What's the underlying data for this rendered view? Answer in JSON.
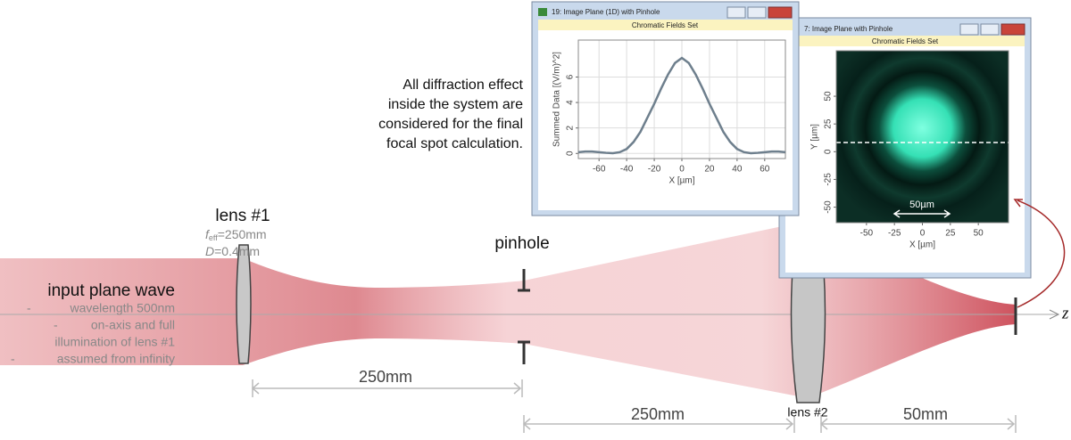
{
  "diagram": {
    "input_label": "input plane wave",
    "input_bullets": [
      "wavelength 500nm",
      "on-axis and full",
      "illumination of lens #1",
      "assumed from infinity"
    ],
    "bullet_marks": [
      "-",
      "-",
      "-"
    ],
    "lens1": {
      "label": "lens #1",
      "f_symbol": "f",
      "f_subscript": "eff",
      "f_value": "=250mm",
      "d_symbol": "D",
      "d_value": "=0.4mm"
    },
    "pinhole": "pinhole",
    "lens2": "lens #2",
    "axis_label": "z",
    "distances": [
      "250mm",
      "250mm",
      "50mm"
    ],
    "note": [
      "All diffraction effect",
      "inside the system are",
      "considered for the final",
      "focal spot calculation."
    ]
  },
  "windows": [
    {
      "title": "19: Image Plane (1D) with Pinhole",
      "band": "Chromatic Fields Set",
      "x_label": "X [µm]",
      "y_label": "Summed Data [(V/m)^2]",
      "xlim": [
        -75,
        75
      ],
      "ylim": [
        -0.4,
        8.9
      ],
      "xticks": [
        -60,
        -40,
        -20,
        0,
        20,
        40,
        60
      ],
      "yticks": [
        0,
        2,
        4,
        6
      ],
      "x": [
        -75,
        -70,
        -65,
        -60,
        -55,
        -50,
        -45,
        -40,
        -35,
        -30,
        -25,
        -20,
        -15,
        -10,
        -5,
        0,
        5,
        10,
        15,
        20,
        25,
        30,
        35,
        40,
        45,
        50,
        55,
        60,
        65,
        70,
        75
      ],
      "values": [
        0.1,
        0.15,
        0.15,
        0.1,
        0.05,
        0.02,
        0.1,
        0.35,
        0.9,
        1.7,
        2.8,
        3.9,
        5.1,
        6.2,
        7.1,
        7.5,
        7.1,
        6.2,
        5.1,
        3.9,
        2.8,
        1.7,
        0.9,
        0.35,
        0.1,
        0.02,
        0.05,
        0.1,
        0.15,
        0.15,
        0.1
      ]
    },
    {
      "title": "7: Image Plane with Pinhole",
      "band": "Chromatic Fields Set",
      "x_label": "X [µm]",
      "y_label": "Y [µm]",
      "xlim": [
        -77,
        77
      ],
      "ylim": [
        -64,
        91
      ],
      "xticks": [
        -50,
        -25,
        0,
        25,
        50
      ],
      "yticks": [
        50,
        25,
        0,
        -25,
        -50
      ],
      "annotation": "50µm"
    }
  ]
}
